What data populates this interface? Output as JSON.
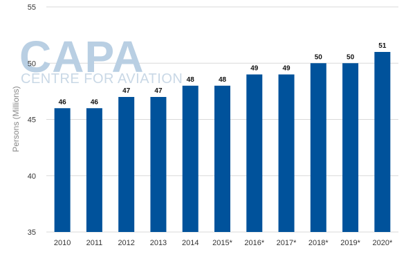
{
  "watermark": {
    "brand": "CAPA",
    "tagline": "CENTRE FOR AVIATION"
  },
  "chart_data": {
    "type": "bar",
    "categories": [
      "2010",
      "2011",
      "2012",
      "2013",
      "2014",
      "2015*",
      "2016*",
      "2017*",
      "2018*",
      "2019*",
      "2020*"
    ],
    "values": [
      46,
      46,
      47,
      47,
      48,
      48,
      49,
      49,
      50,
      50,
      51
    ],
    "data_labels": [
      "46",
      "46",
      "47",
      "47",
      "48",
      "48",
      "49",
      "49",
      "50",
      "50",
      "51"
    ],
    "ylabel": "Persons (Millions)",
    "ylim": [
      35,
      55
    ],
    "yticks": [
      35,
      40,
      45,
      50,
      55
    ],
    "grid": true,
    "bar_color": "#00529b",
    "grid_color": "#d9d9d9"
  }
}
